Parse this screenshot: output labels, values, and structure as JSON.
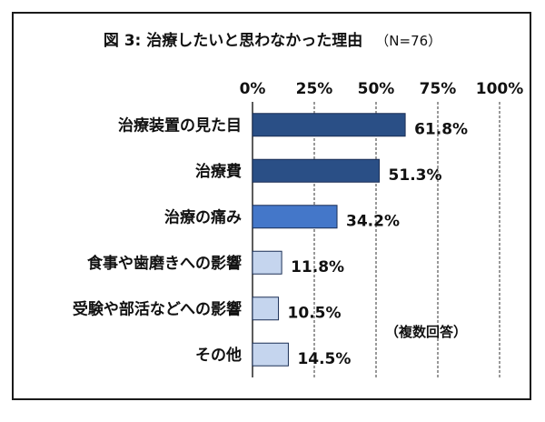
{
  "chart_data": {
    "type": "bar",
    "orientation": "horizontal",
    "title": "図 3:  治療したいと思わなかった理由",
    "subtitle": "（N=76）",
    "categories": [
      "治療装置の見た目",
      "治療費",
      "治療の痛み",
      "食事や歯磨きへの影響",
      "受験や部活などへの影響",
      "その他"
    ],
    "values": [
      61.8,
      51.3,
      34.2,
      11.8,
      10.5,
      14.5
    ],
    "value_labels": [
      "61.8%",
      "51.3%",
      "34.2%",
      "11.8%",
      "10.5%",
      "14.5%"
    ],
    "xlim": [
      0,
      100
    ],
    "x_ticks": [
      0,
      25,
      50,
      75,
      100
    ],
    "x_tick_labels": [
      "0%",
      "25%",
      "50%",
      "75%",
      "100%"
    ],
    "x_axis_position": "top",
    "grid": "vertical",
    "annotation": "（複数回答）",
    "colors": {
      "bars": [
        "#2a4f86",
        "#2a4f86",
        "#4477c9",
        "#c5d5ee",
        "#c5d5ee",
        "#c5d5ee"
      ],
      "bar_stroke": "#1b2f55",
      "grid": "#333333"
    }
  }
}
